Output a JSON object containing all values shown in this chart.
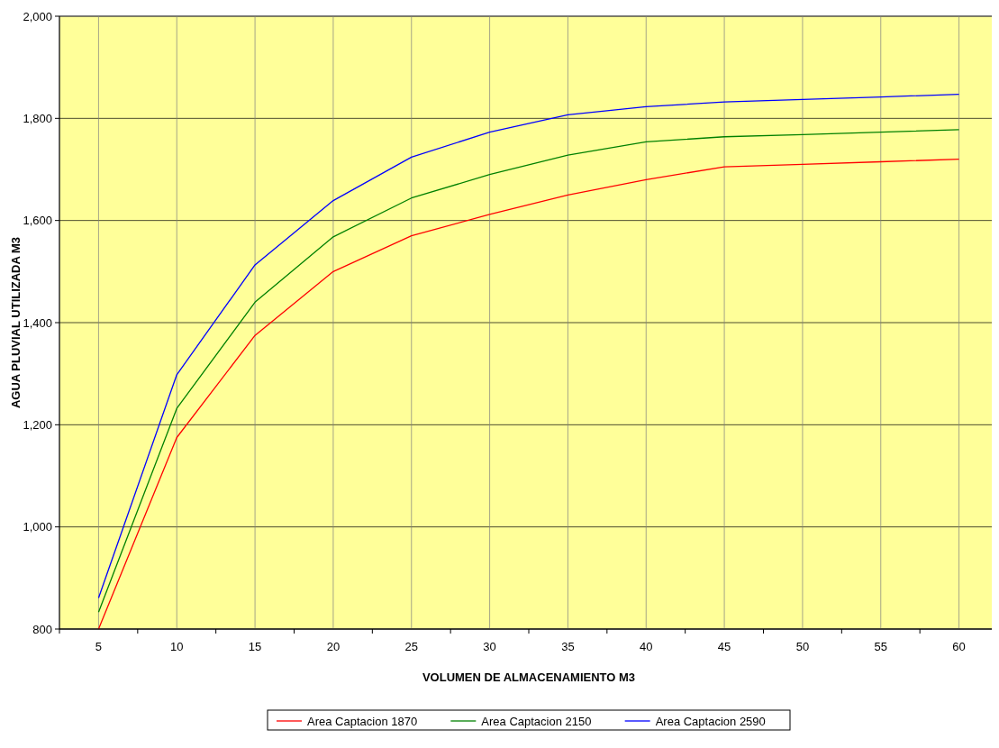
{
  "chart_data": {
    "type": "line",
    "xlabel": "VOLUMEN DE ALMACENAMIENTO M3",
    "ylabel": "AGUA PLUVIAL UTILIZADA M3",
    "categories": [
      "5",
      "10",
      "15",
      "20",
      "25",
      "30",
      "35",
      "40",
      "45",
      "50",
      "55",
      "60"
    ],
    "series": [
      {
        "name": "Area Captacion 1870",
        "color": "#ff0000",
        "values": [
          800,
          1175,
          1375,
          1500,
          1570,
          1612,
          1650,
          1680,
          1705,
          1710,
          1715,
          1720
        ]
      },
      {
        "name": "Area Captacion 2150",
        "color": "#008000",
        "values": [
          833,
          1232,
          1440,
          1568,
          1644,
          1690,
          1728,
          1754,
          1764,
          1768,
          1773,
          1778
        ]
      },
      {
        "name": "Area Captacion 2590",
        "color": "#0000ff",
        "values": [
          861,
          1298,
          1513,
          1639,
          1724,
          1773,
          1807,
          1823,
          1832,
          1837,
          1842,
          1847
        ]
      }
    ],
    "ylim": [
      800,
      2000
    ],
    "yticks": [
      {
        "value": 800,
        "label": "800"
      },
      {
        "value": 1000,
        "label": "1,000"
      },
      {
        "value": 1200,
        "label": "1,200"
      },
      {
        "value": 1400,
        "label": "1,400"
      },
      {
        "value": 1600,
        "label": "1,600"
      },
      {
        "value": 1800,
        "label": "1,800"
      },
      {
        "value": 2000,
        "label": "2,000"
      }
    ],
    "grid": true,
    "legend": "bottom",
    "marker": "none",
    "line_style": "solid"
  }
}
